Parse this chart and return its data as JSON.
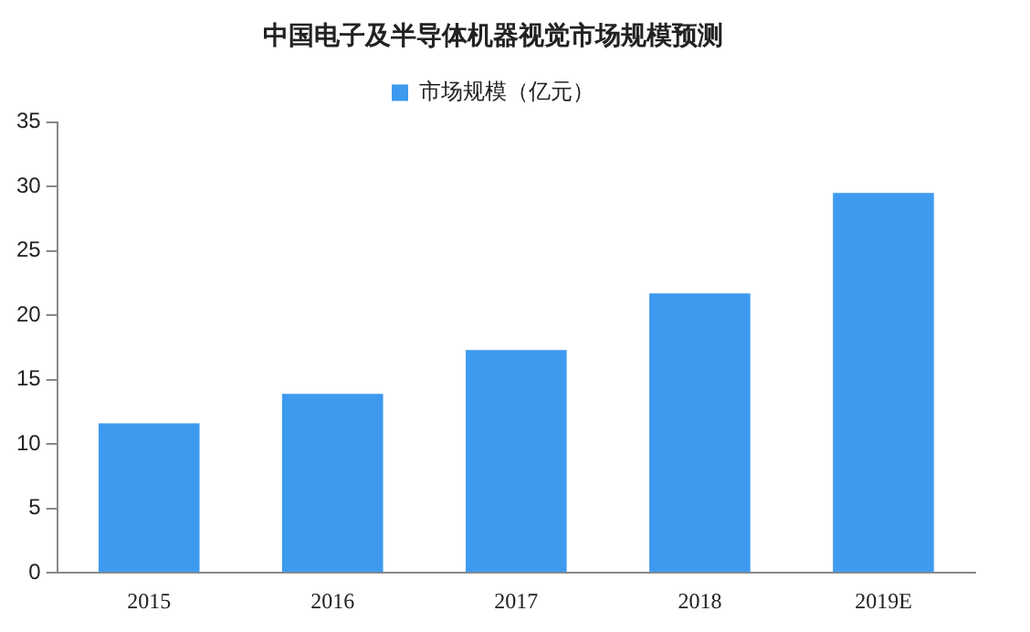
{
  "chart_data": {
    "type": "bar",
    "title": "中国电子及半导体机器视觉市场规模预测",
    "categories": [
      "2015",
      "2016",
      "2017",
      "2018",
      "2019E"
    ],
    "series": [
      {
        "name": "市场规模（亿元）",
        "color": "#3d9aef",
        "values": [
          11.6,
          13.9,
          17.3,
          21.7,
          29.5
        ]
      }
    ],
    "ylim": [
      0,
      35
    ],
    "yticks": [
      0,
      5,
      10,
      15,
      20,
      25,
      30,
      35
    ],
    "grid": false,
    "legend": "top"
  }
}
